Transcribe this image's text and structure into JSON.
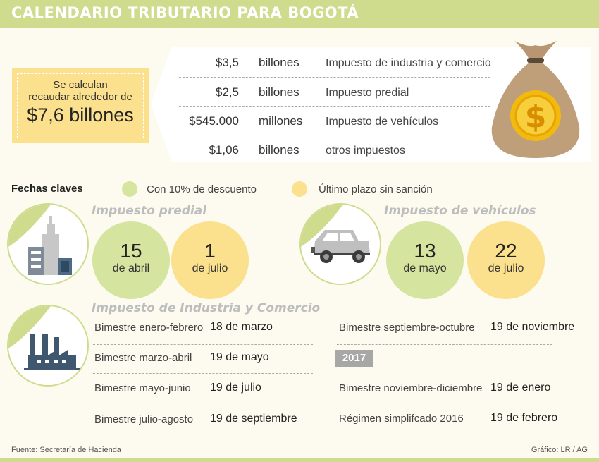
{
  "title": "CALENDARIO TRIBUTARIO PARA BOGOTÁ",
  "summary": {
    "line1": "Se calculan",
    "line2": "recaudar alrededor de",
    "big": "$7,6 billones"
  },
  "taxes": [
    {
      "amount": "$3,5",
      "unit": "billones",
      "desc": "Impuesto de industria y comercio"
    },
    {
      "amount": "$2,5",
      "unit": "billones",
      "desc": "Impuesto predial"
    },
    {
      "amount": "$545.000",
      "unit": "millones",
      "desc": "Impuesto de vehículos"
    },
    {
      "amount": "$1,06",
      "unit": "billones",
      "desc": "otros impuestos"
    }
  ],
  "money_bag_icon": "money-bag-icon",
  "legend": {
    "title": "Fechas claves",
    "discount": "Con 10% de descuento",
    "deadline": "Último plazo sin sanción"
  },
  "colors": {
    "discount": "#d5e49e",
    "deadline": "#fbe08d",
    "accent": "#cfdc8e"
  },
  "predial": {
    "title": "Impuesto predial",
    "d1_num": "15",
    "d1_mon": "de abril",
    "d2_num": "1",
    "d2_mon": "de julio"
  },
  "vehiculos": {
    "title": "Impuesto de vehículos",
    "d1_num": "13",
    "d1_mon": "de mayo",
    "d2_num": "22",
    "d2_mon": "de julio"
  },
  "ica": {
    "title": "Impuesto de Industria y Comercio",
    "left": [
      {
        "label": "Bimestre enero-febrero",
        "date": "18 de marzo"
      },
      {
        "label": "Bimestre marzo-abril",
        "date": "19 de mayo"
      },
      {
        "label": "Bimestre mayo-junio",
        "date": "19 de julio"
      },
      {
        "label": "Bimestre julio-agosto",
        "date": "19 de septiembre"
      }
    ],
    "right": [
      {
        "label": "Bimestre septiembre-octubre",
        "date": "19 de noviembre"
      },
      {
        "label": "Bimestre noviembre-diciembre",
        "date": "19 de enero"
      },
      {
        "label": "Régimen simplifcado 2016",
        "date": "19 de febrero"
      }
    ],
    "year": "2017"
  },
  "footer": {
    "source": "Fuente: Secretaría de Hacienda",
    "credit": "Gráfico: LR / AG"
  }
}
